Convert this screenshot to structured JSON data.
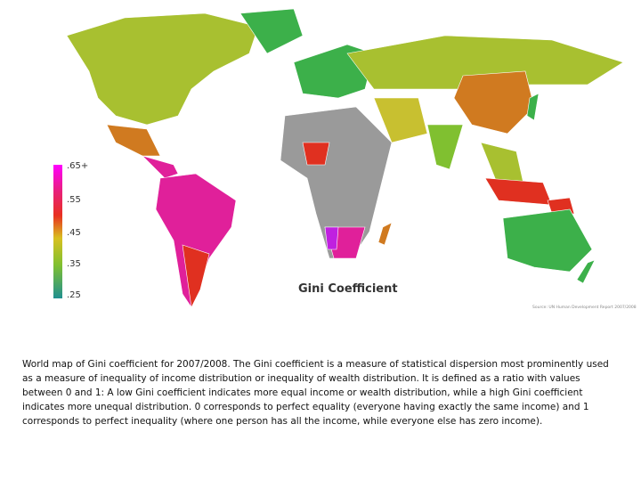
{
  "map": {
    "title": "Gini Coefficient",
    "legend": {
      "labels": [
        ".65+",
        ".55",
        ".45",
        ".35",
        ".25"
      ]
    },
    "source": "Source: UN Human Development Report 2007/2008"
  },
  "caption": "World map of Gini coefficient for 2007/2008. The Gini coefficient is a measure of statistical dispersion most prominently used as a measure of inequality of income distribution or inequality of wealth distribution. It is defined as a ratio with values between 0 and 1: A low Gini coefficient indicates more equal income or wealth distribution, while a high Gini coefficient indicates more unequal distribution. 0 corresponds to perfect equality (everyone having exactly the same income) and 1 corresponds to perfect inequality (where one person has all the income, while everyone else has zero income)."
}
